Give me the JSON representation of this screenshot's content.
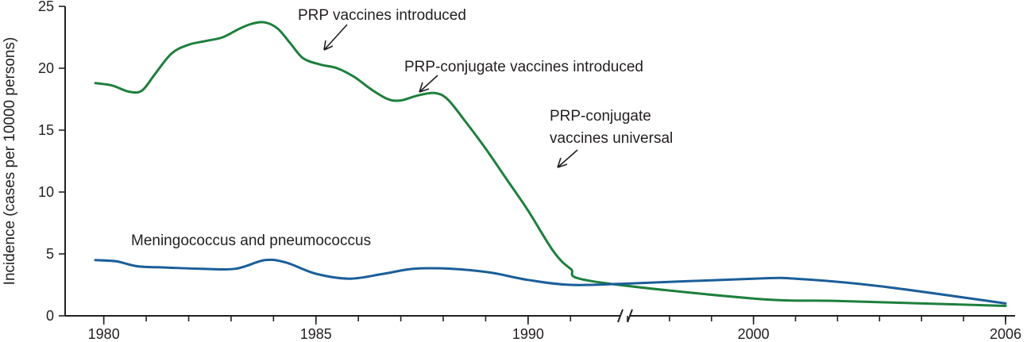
{
  "chart_data": {
    "type": "line",
    "ylabel": "Incidence (cases per 10000 persons)",
    "xlabel": "",
    "title": "",
    "ylim": [
      0,
      25
    ],
    "y_ticks": [
      0,
      5,
      10,
      15,
      20,
      25
    ],
    "x_tick_labels": [
      "1980",
      "1985",
      "1990",
      "2000",
      "2006"
    ],
    "axis_break": "between 1991 and 2000",
    "grid": false,
    "colors": {
      "axis": "#231f20",
      "series_green": "#1e7f3c",
      "series_blue": "#1b5e99"
    },
    "series": [
      {
        "name": "",
        "color": "#1e7f3c",
        "points": [
          [
            "1979.8",
            18.8
          ],
          [
            "1980.2",
            18.6
          ],
          [
            "1980.6",
            18.1
          ],
          [
            "1980.9",
            18.2
          ],
          [
            "1981.2",
            19.5
          ],
          [
            "1981.6",
            21.2
          ],
          [
            "1982.0",
            21.9
          ],
          [
            "1982.4",
            22.2
          ],
          [
            "1982.8",
            22.5
          ],
          [
            "1983.2",
            23.2
          ],
          [
            "1983.5",
            23.6
          ],
          [
            "1983.8",
            23.7
          ],
          [
            "1984.1",
            23.2
          ],
          [
            "1984.4",
            22.0
          ],
          [
            "1984.7",
            20.8
          ],
          [
            "1985.1",
            20.3
          ],
          [
            "1985.5",
            20.0
          ],
          [
            "1985.9",
            19.3
          ],
          [
            "1986.3",
            18.3
          ],
          [
            "1986.7",
            17.5
          ],
          [
            "1987.0",
            17.4
          ],
          [
            "1987.4",
            17.8
          ],
          [
            "1987.8",
            18.0
          ],
          [
            "1988.1",
            17.5
          ],
          [
            "1988.5",
            15.8
          ],
          [
            "1989.0",
            13.5
          ],
          [
            "1989.5",
            11.0
          ],
          [
            "1990.0",
            8.5
          ],
          [
            "1990.6",
            5.2
          ],
          [
            "1991.0",
            3.8
          ],
          [
            "1991.5",
            2.8
          ],
          [
            "2000",
            1.4
          ],
          [
            "2002",
            1.2
          ],
          [
            "2004",
            1.0
          ],
          [
            "2006",
            0.8
          ]
        ]
      },
      {
        "name": "Meningococcus and pneumococcus",
        "color": "#1b5e99",
        "points": [
          [
            "1979.8",
            4.5
          ],
          [
            "1980.3",
            4.4
          ],
          [
            "1980.8",
            4.0
          ],
          [
            "1981.5",
            3.9
          ],
          [
            "1982.3",
            3.8
          ],
          [
            "1983.1",
            3.8
          ],
          [
            "1983.8",
            4.5
          ],
          [
            "1984.3",
            4.3
          ],
          [
            "1985.0",
            3.4
          ],
          [
            "1985.8",
            3.0
          ],
          [
            "1986.6",
            3.4
          ],
          [
            "1987.3",
            3.8
          ],
          [
            "1988.2",
            3.8
          ],
          [
            "1989.1",
            3.5
          ],
          [
            "1990.0",
            2.9
          ],
          [
            "1991.0",
            2.5
          ],
          [
            "1997",
            2.6
          ],
          [
            "2000",
            3.0
          ],
          [
            "2001",
            3.0
          ],
          [
            "2003",
            2.4
          ],
          [
            "2006",
            1.0
          ]
        ]
      }
    ],
    "annotations": [
      {
        "text": "PRP vaccines introduced",
        "points_to": [
          "1984.7",
          20.7
        ]
      },
      {
        "text": "PRP-conjugate vaccines introduced",
        "points_to": [
          "1987.0",
          17.5
        ]
      },
      {
        "text": "PRP-conjugate",
        "text2": "vaccines  universal",
        "points_to": [
          "1990.0",
          11.5
        ]
      },
      {
        "text": "Meningococcus and pneumococcus"
      }
    ]
  }
}
